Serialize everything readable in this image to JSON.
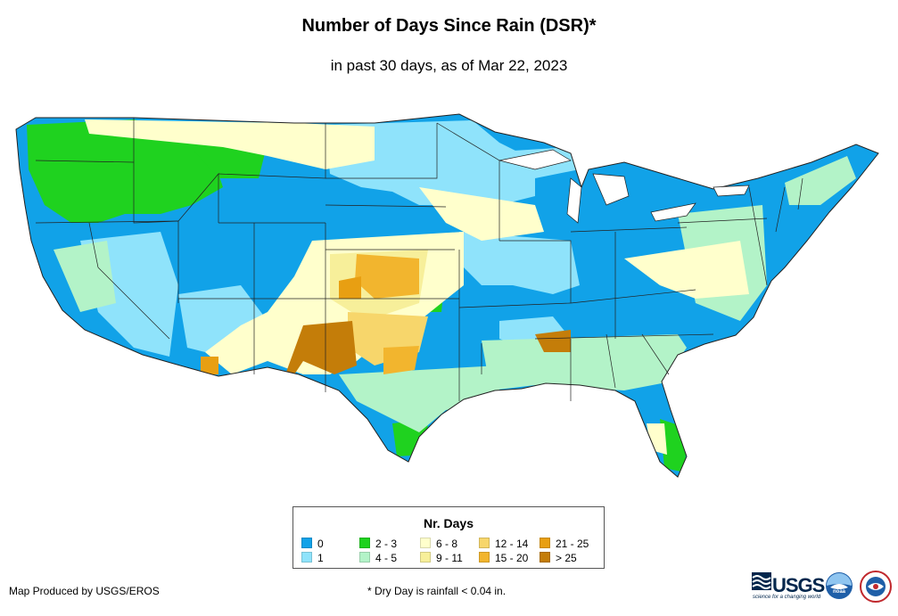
{
  "title": "Number of Days Since Rain (DSR)*",
  "subtitle": "in past 30 days, as of Mar 22, 2023",
  "legend": {
    "title": "Nr. Days",
    "items": [
      {
        "label": "0",
        "color": "#11a2e8"
      },
      {
        "label": "1",
        "color": "#8fe3fb"
      },
      {
        "label": "2 - 3",
        "color": "#1fd21f"
      },
      {
        "label": "4 - 5",
        "color": "#b3f3c8"
      },
      {
        "label": "6 - 8",
        "color": "#ffffcc"
      },
      {
        "label": "9 - 11",
        "color": "#f7ef9a"
      },
      {
        "label": "12 - 14",
        "color": "#f7d66b"
      },
      {
        "label": "15 - 20",
        "color": "#f2b52e"
      },
      {
        "label": "21 - 25",
        "color": "#e89f12"
      },
      {
        "label": "> 25",
        "color": "#c47d09"
      }
    ]
  },
  "credit": "Map Produced by USGS/EROS",
  "footnote": "* Dry Day is rainfall < 0.04 in.",
  "logos": {
    "usgs": "USGS",
    "usgs_tagline": "science for a changing world",
    "noaa": "noaa",
    "nws_icon": "nws-logo-icon"
  }
}
